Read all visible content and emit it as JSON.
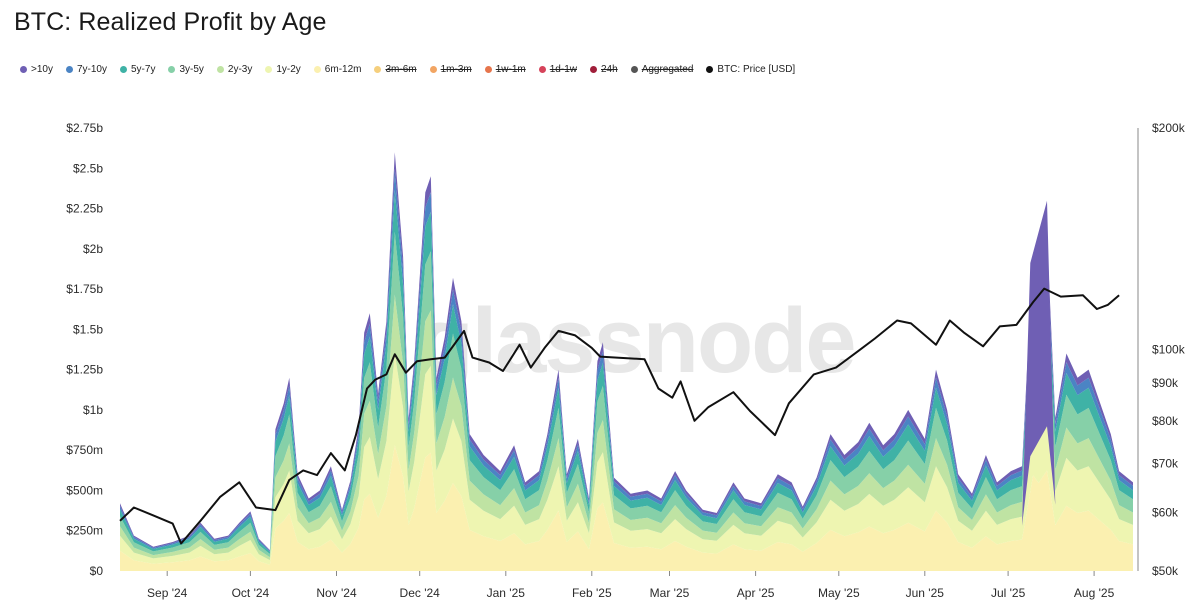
{
  "title": "BTC: Realized Profit by Age",
  "watermark": "glassnode",
  "legend": [
    {
      "label": ">10y",
      "color": "#6f5fb4",
      "active": true
    },
    {
      "label": "7y-10y",
      "color": "#4b84c4",
      "active": true
    },
    {
      "label": "5y-7y",
      "color": "#3fb2a6",
      "active": true
    },
    {
      "label": "3y-5y",
      "color": "#86d0a8",
      "active": true
    },
    {
      "label": "2y-3y",
      "color": "#bfe3a3",
      "active": true
    },
    {
      "label": "1y-2y",
      "color": "#eef5b1",
      "active": true
    },
    {
      "label": "6m-12m",
      "color": "#fbf0b0",
      "active": true
    },
    {
      "label": "3m-6m",
      "color": "#f5cf7d",
      "active": false
    },
    {
      "label": "1m-3m",
      "color": "#f2a563",
      "active": false
    },
    {
      "label": "1w-1m",
      "color": "#e6754c",
      "active": false
    },
    {
      "label": "1d-1w",
      "color": "#d6435a",
      "active": false
    },
    {
      "label": "24h",
      "color": "#a01e3a",
      "active": false
    },
    {
      "label": "Aggregated",
      "color": "#555555",
      "active": false
    },
    {
      "label": "BTC: Price [USD]",
      "color": "#111111",
      "active": true
    }
  ],
  "chart_data": {
    "type": "area",
    "stacked": true,
    "x_start": "2024-08-15",
    "x_end": "2025-08-15",
    "x_ticks": [
      {
        "date": "2024-09-01",
        "label": "Sep '24"
      },
      {
        "date": "2024-10-01",
        "label": "Oct '24"
      },
      {
        "date": "2024-11-01",
        "label": "Nov '24"
      },
      {
        "date": "2024-12-01",
        "label": "Dec '24"
      },
      {
        "date": "2025-01-01",
        "label": "Jan '25"
      },
      {
        "date": "2025-02-01",
        "label": "Feb '25"
      },
      {
        "date": "2025-03-01",
        "label": "Mar '25"
      },
      {
        "date": "2025-04-01",
        "label": "Apr '25"
      },
      {
        "date": "2025-05-01",
        "label": "May '25"
      },
      {
        "date": "2025-06-01",
        "label": "Jun '25"
      },
      {
        "date": "2025-07-01",
        "label": "Jul '25"
      },
      {
        "date": "2025-08-01",
        "label": "Aug '25"
      }
    ],
    "y_left": {
      "range": [
        0,
        2.75
      ],
      "unit": "USD billions",
      "ticks": [
        {
          "v": 0,
          "label": "$0"
        },
        {
          "v": 0.25,
          "label": "$250m"
        },
        {
          "v": 0.5,
          "label": "$500m"
        },
        {
          "v": 0.75,
          "label": "$750m"
        },
        {
          "v": 1.0,
          "label": "$1b"
        },
        {
          "v": 1.25,
          "label": "$1.25b"
        },
        {
          "v": 1.5,
          "label": "$1.5b"
        },
        {
          "v": 1.75,
          "label": "$1.75b"
        },
        {
          "v": 2.0,
          "label": "$2b"
        },
        {
          "v": 2.25,
          "label": "$2.25b"
        },
        {
          "v": 2.5,
          "label": "$2.5b"
        },
        {
          "v": 2.75,
          "label": "$2.75b"
        }
      ]
    },
    "y_right": {
      "scale": "log",
      "range": [
        50000,
        200000
      ],
      "ticks": [
        {
          "v": 50000,
          "label": "$50k"
        },
        {
          "v": 60000,
          "label": "$60k"
        },
        {
          "v": 70000,
          "label": "$70k"
        },
        {
          "v": 80000,
          "label": "$80k"
        },
        {
          "v": 90000,
          "label": "$90k"
        },
        {
          "v": 100000,
          "label": "$100k"
        },
        {
          "v": 200000,
          "label": "$200k"
        }
      ]
    },
    "total_profit": [
      [
        "2024-08-15",
        0.42
      ],
      [
        "2024-08-20",
        0.22
      ],
      [
        "2024-08-27",
        0.15
      ],
      [
        "2024-09-03",
        0.18
      ],
      [
        "2024-09-09",
        0.22
      ],
      [
        "2024-09-13",
        0.3
      ],
      [
        "2024-09-18",
        0.2
      ],
      [
        "2024-09-23",
        0.22
      ],
      [
        "2024-09-27",
        0.3
      ],
      [
        "2024-10-01",
        0.37
      ],
      [
        "2024-10-04",
        0.2
      ],
      [
        "2024-10-08",
        0.13
      ],
      [
        "2024-10-10",
        0.88
      ],
      [
        "2024-10-13",
        1.04
      ],
      [
        "2024-10-15",
        1.2
      ],
      [
        "2024-10-18",
        0.6
      ],
      [
        "2024-10-22",
        0.45
      ],
      [
        "2024-10-26",
        0.5
      ],
      [
        "2024-10-30",
        0.65
      ],
      [
        "2024-11-03",
        0.38
      ],
      [
        "2024-11-06",
        0.56
      ],
      [
        "2024-11-09",
        0.9
      ],
      [
        "2024-11-11",
        1.48
      ],
      [
        "2024-11-13",
        1.6
      ],
      [
        "2024-11-16",
        1.1
      ],
      [
        "2024-11-19",
        1.55
      ],
      [
        "2024-11-22",
        2.6
      ],
      [
        "2024-11-25",
        1.95
      ],
      [
        "2024-11-27",
        0.95
      ],
      [
        "2024-11-29",
        1.3
      ],
      [
        "2024-12-03",
        2.35
      ],
      [
        "2024-12-05",
        2.45
      ],
      [
        "2024-12-07",
        1.2
      ],
      [
        "2024-12-10",
        1.45
      ],
      [
        "2024-12-13",
        1.82
      ],
      [
        "2024-12-16",
        1.55
      ],
      [
        "2024-12-19",
        0.85
      ],
      [
        "2024-12-24",
        0.72
      ],
      [
        "2024-12-30",
        0.62
      ],
      [
        "2025-01-04",
        0.78
      ],
      [
        "2025-01-08",
        0.55
      ],
      [
        "2025-01-13",
        0.62
      ],
      [
        "2025-01-16",
        0.85
      ],
      [
        "2025-01-20",
        1.25
      ],
      [
        "2025-01-23",
        0.6
      ],
      [
        "2025-01-27",
        0.82
      ],
      [
        "2025-01-31",
        0.45
      ],
      [
        "2025-02-03",
        1.3
      ],
      [
        "2025-02-05",
        1.42
      ],
      [
        "2025-02-09",
        0.58
      ],
      [
        "2025-02-15",
        0.48
      ],
      [
        "2025-02-21",
        0.5
      ],
      [
        "2025-02-26",
        0.45
      ],
      [
        "2025-03-03",
        0.62
      ],
      [
        "2025-03-07",
        0.5
      ],
      [
        "2025-03-13",
        0.38
      ],
      [
        "2025-03-18",
        0.36
      ],
      [
        "2025-03-24",
        0.55
      ],
      [
        "2025-03-28",
        0.45
      ],
      [
        "2025-04-03",
        0.42
      ],
      [
        "2025-04-09",
        0.6
      ],
      [
        "2025-04-14",
        0.55
      ],
      [
        "2025-04-18",
        0.4
      ],
      [
        "2025-04-23",
        0.58
      ],
      [
        "2025-04-28",
        0.85
      ],
      [
        "2025-05-03",
        0.72
      ],
      [
        "2025-05-08",
        0.8
      ],
      [
        "2025-05-12",
        0.92
      ],
      [
        "2025-05-17",
        0.78
      ],
      [
        "2025-05-21",
        0.85
      ],
      [
        "2025-05-26",
        1.0
      ],
      [
        "2025-06-01",
        0.82
      ],
      [
        "2025-06-05",
        1.25
      ],
      [
        "2025-06-09",
        1.0
      ],
      [
        "2025-06-13",
        0.6
      ],
      [
        "2025-06-18",
        0.48
      ],
      [
        "2025-06-23",
        0.72
      ],
      [
        "2025-06-27",
        0.55
      ],
      [
        "2025-07-02",
        0.62
      ],
      [
        "2025-07-06",
        0.65
      ],
      [
        "2025-07-10",
        1.98
      ],
      [
        "2025-07-12",
        1.82
      ],
      [
        "2025-07-15",
        2.08
      ],
      [
        "2025-07-18",
        0.95
      ],
      [
        "2025-07-22",
        1.35
      ],
      [
        "2025-07-26",
        1.2
      ],
      [
        "2025-07-30",
        1.25
      ],
      [
        "2025-08-03",
        1.05
      ],
      [
        "2025-08-07",
        0.85
      ],
      [
        "2025-08-10",
        0.62
      ],
      [
        "2025-08-15",
        0.55
      ]
    ],
    "age_shares": [
      {
        "name": "6m-12m",
        "color": "#fbf0b0",
        "share": 0.3
      },
      {
        "name": "1y-2y",
        "color": "#eef5b1",
        "share": 0.22
      },
      {
        "name": "2y-3y",
        "color": "#bfe3a3",
        "share": 0.14
      },
      {
        "name": "3y-5y",
        "color": "#86d0a8",
        "share": 0.15
      },
      {
        "name": "5y-7y",
        "color": "#3fb2a6",
        "share": 0.1
      },
      {
        "name": "7y-10y",
        "color": "#4b84c4",
        "share": 0.05
      },
      {
        "name": ">10y",
        "color": "#6f5fb4",
        "share": 0.04
      }
    ],
    "spike_10y": [
      [
        "2025-07-06",
        0.0
      ],
      [
        "2025-07-09",
        1.2
      ],
      [
        "2025-07-15",
        1.4
      ],
      [
        "2025-07-18",
        0.0
      ]
    ],
    "price": [
      [
        "2024-08-15",
        58500
      ],
      [
        "2024-08-20",
        61000
      ],
      [
        "2024-08-27",
        59500
      ],
      [
        "2024-09-03",
        58000
      ],
      [
        "2024-09-06",
        54500
      ],
      [
        "2024-09-13",
        58500
      ],
      [
        "2024-09-20",
        63000
      ],
      [
        "2024-09-27",
        66000
      ],
      [
        "2024-10-03",
        61000
      ],
      [
        "2024-10-10",
        60500
      ],
      [
        "2024-10-15",
        66500
      ],
      [
        "2024-10-20",
        68500
      ],
      [
        "2024-10-25",
        67500
      ],
      [
        "2024-10-30",
        72300
      ],
      [
        "2024-11-04",
        68500
      ],
      [
        "2024-11-08",
        76500
      ],
      [
        "2024-11-12",
        88500
      ],
      [
        "2024-11-15",
        91000
      ],
      [
        "2024-11-19",
        92500
      ],
      [
        "2024-11-22",
        98500
      ],
      [
        "2024-11-26",
        93000
      ],
      [
        "2024-11-30",
        96400
      ],
      [
        "2024-12-05",
        97000
      ],
      [
        "2024-12-10",
        97500
      ],
      [
        "2024-12-17",
        106000
      ],
      [
        "2024-12-20",
        97500
      ],
      [
        "2024-12-26",
        96000
      ],
      [
        "2024-12-31",
        93500
      ],
      [
        "2025-01-06",
        101500
      ],
      [
        "2025-01-10",
        94500
      ],
      [
        "2025-01-15",
        100500
      ],
      [
        "2025-01-20",
        106000
      ],
      [
        "2025-01-26",
        104500
      ],
      [
        "2025-02-01",
        100500
      ],
      [
        "2025-02-04",
        97800
      ],
      [
        "2025-02-10",
        97500
      ],
      [
        "2025-02-20",
        97000
      ],
      [
        "2025-02-25",
        88500
      ],
      [
        "2025-03-02",
        86000
      ],
      [
        "2025-03-05",
        90500
      ],
      [
        "2025-03-10",
        80000
      ],
      [
        "2025-03-15",
        83500
      ],
      [
        "2025-03-24",
        87500
      ],
      [
        "2025-03-30",
        82500
      ],
      [
        "2025-04-08",
        76500
      ],
      [
        "2025-04-13",
        84500
      ],
      [
        "2025-04-22",
        92500
      ],
      [
        "2025-04-30",
        94500
      ],
      [
        "2025-05-08",
        99500
      ],
      [
        "2025-05-14",
        103500
      ],
      [
        "2025-05-22",
        109500
      ],
      [
        "2025-05-27",
        108500
      ],
      [
        "2025-06-05",
        101500
      ],
      [
        "2025-06-10",
        109500
      ],
      [
        "2025-06-15",
        105500
      ],
      [
        "2025-06-22",
        101000
      ],
      [
        "2025-06-28",
        107500
      ],
      [
        "2025-07-04",
        108000
      ],
      [
        "2025-07-10",
        116000
      ],
      [
        "2025-07-14",
        121000
      ],
      [
        "2025-07-20",
        118000
      ],
      [
        "2025-07-28",
        118500
      ],
      [
        "2025-08-02",
        113500
      ],
      [
        "2025-08-06",
        115000
      ],
      [
        "2025-08-10",
        118500
      ]
    ]
  }
}
